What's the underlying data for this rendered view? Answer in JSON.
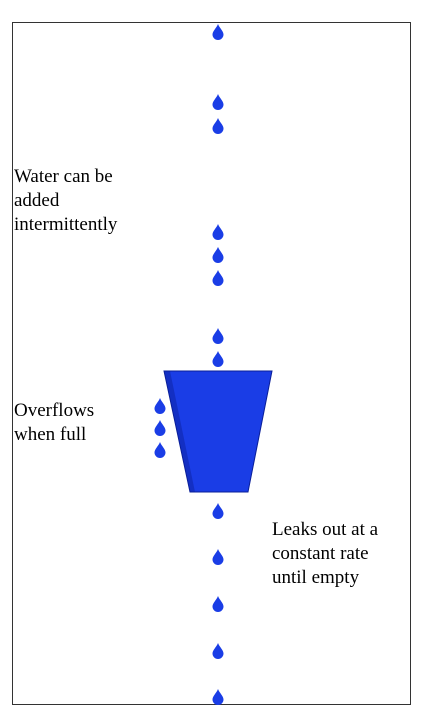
{
  "labels": {
    "inflow": "Water can be\nadded\nintermittently",
    "overflow": "Overflows\nwhen full",
    "leak": "Leaks out at a\nconstant rate\nuntil empty"
  },
  "colors": {
    "water": "#1a3de6",
    "bucket_edge": "#0a1f99",
    "frame": "#333333",
    "text": "#000000"
  },
  "counts": {
    "inflow_drops": 8,
    "overflow_drops": 3,
    "leak_drops": 5
  },
  "icons": {
    "drop": "water-drop-icon",
    "bucket": "bucket-icon"
  }
}
